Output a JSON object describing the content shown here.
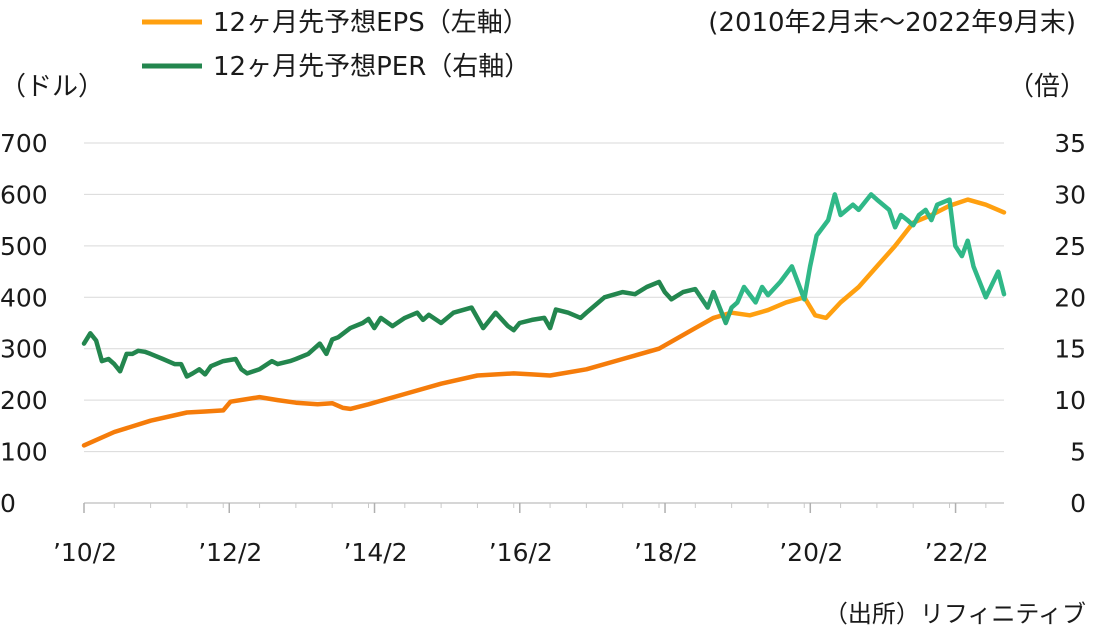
{
  "chart_data": {
    "type": "line",
    "period_note": "(2010年2月末〜2022年9月末)",
    "left_axis_label": "（ドル）",
    "right_axis_label": "（倍）",
    "source": "（出所）リフィニティブ",
    "left_ylim": [
      0,
      700
    ],
    "right_ylim": [
      0,
      35
    ],
    "left_ticks": [
      "700",
      "600",
      "500",
      "400",
      "300",
      "200",
      "100",
      "0"
    ],
    "right_ticks": [
      "35",
      "30",
      "25",
      "20",
      "15",
      "10",
      "5",
      "0"
    ],
    "x_tick_labels": [
      "’10/2",
      "’12/2",
      "’14/2",
      "’16/2",
      "’18/2",
      "’20/2",
      "’22/2"
    ],
    "x_tick_years": [
      2010.083,
      2012.083,
      2014.083,
      2016.083,
      2018.083,
      2020.083,
      2022.083
    ],
    "xlim": [
      2010.083,
      2022.75
    ],
    "grid": true,
    "legend": "top-left",
    "series": [
      {
        "name": "12ヶ月先予想EPS（左軸）",
        "axis": "left",
        "color": "#ffa010",
        "color_early": "#f57c0a",
        "x": [
          2010.083,
          2010.5,
          2011.0,
          2011.5,
          2011.75,
          2012.0,
          2012.1,
          2012.5,
          2012.75,
          2013.0,
          2013.3,
          2013.5,
          2013.65,
          2013.75,
          2014.0,
          2014.5,
          2015.0,
          2015.5,
          2016.0,
          2016.25,
          2016.5,
          2017.0,
          2017.5,
          2018.0,
          2018.5,
          2018.75,
          2019.0,
          2019.25,
          2019.5,
          2019.75,
          2020.0,
          2020.15,
          2020.3,
          2020.5,
          2020.75,
          2021.0,
          2021.25,
          2021.5,
          2021.75,
          2022.0,
          2022.25,
          2022.5,
          2022.75
        ],
        "values": [
          112,
          138,
          160,
          176,
          178,
          180,
          197,
          206,
          200,
          195,
          192,
          194,
          185,
          183,
          192,
          212,
          232,
          248,
          252,
          250,
          248,
          260,
          280,
          300,
          340,
          360,
          370,
          365,
          375,
          390,
          400,
          365,
          360,
          390,
          420,
          460,
          500,
          545,
          560,
          578,
          590,
          580,
          565
        ]
      },
      {
        "name": "12ヶ月先予想PER（右軸）",
        "axis": "right",
        "color": "#30b888",
        "color_early": "#23864e",
        "x": [
          2010.083,
          2010.17,
          2010.25,
          2010.33,
          2010.42,
          2010.5,
          2010.58,
          2010.67,
          2010.75,
          2010.83,
          2010.92,
          2011.0,
          2011.17,
          2011.33,
          2011.42,
          2011.5,
          2011.58,
          2011.67,
          2011.75,
          2011.83,
          2012.0,
          2012.17,
          2012.25,
          2012.33,
          2012.5,
          2012.67,
          2012.75,
          2012.92,
          2013.0,
          2013.17,
          2013.33,
          2013.42,
          2013.5,
          2013.58,
          2013.75,
          2013.92,
          2014.0,
          2014.08,
          2014.17,
          2014.33,
          2014.5,
          2014.67,
          2014.75,
          2014.83,
          2015.0,
          2015.17,
          2015.42,
          2015.58,
          2015.75,
          2015.92,
          2016.0,
          2016.08,
          2016.25,
          2016.42,
          2016.5,
          2016.58,
          2016.75,
          2016.92,
          2017.0,
          2017.25,
          2017.5,
          2017.67,
          2017.83,
          2018.0,
          2018.08,
          2018.17,
          2018.33,
          2018.5,
          2018.67,
          2018.75,
          2018.92,
          2019.0,
          2019.08,
          2019.17,
          2019.33,
          2019.42,
          2019.5,
          2019.67,
          2019.83,
          2020.0,
          2020.08,
          2020.17,
          2020.33,
          2020.42,
          2020.5,
          2020.67,
          2020.75,
          2020.92,
          2021.0,
          2021.17,
          2021.25,
          2021.33,
          2021.42,
          2021.5,
          2021.58,
          2021.67,
          2021.75,
          2021.83,
          2022.0,
          2022.08,
          2022.17,
          2022.25,
          2022.33,
          2022.5,
          2022.67,
          2022.75
        ],
        "values": [
          15.5,
          16.5,
          15.8,
          13.8,
          14.0,
          13.5,
          12.8,
          14.5,
          14.5,
          14.8,
          14.7,
          14.5,
          14.0,
          13.5,
          13.5,
          12.3,
          12.6,
          13.0,
          12.5,
          13.3,
          13.8,
          14.0,
          13.0,
          12.6,
          13.0,
          13.8,
          13.5,
          13.8,
          14.0,
          14.5,
          15.5,
          14.5,
          15.9,
          16.1,
          17.0,
          17.5,
          17.9,
          17.0,
          18.0,
          17.2,
          18.0,
          18.5,
          17.8,
          18.3,
          17.5,
          18.5,
          19.0,
          17.0,
          18.5,
          17.2,
          16.8,
          17.5,
          17.8,
          18.0,
          17.0,
          18.8,
          18.5,
          18.0,
          18.5,
          20.0,
          20.5,
          20.3,
          21.0,
          21.5,
          20.5,
          19.8,
          20.5,
          20.8,
          19.0,
          20.5,
          17.5,
          19.0,
          19.5,
          21.0,
          19.5,
          21.0,
          20.2,
          21.5,
          23.0,
          19.8,
          23.0,
          26.0,
          27.5,
          30.0,
          28.0,
          29.0,
          28.5,
          30.0,
          29.5,
          28.5,
          26.8,
          28.0,
          27.5,
          27.0,
          28.0,
          28.5,
          27.5,
          29.0,
          29.5,
          25.0,
          24.0,
          25.5,
          23.0,
          20.0,
          22.5,
          20.3
        ]
      }
    ]
  }
}
